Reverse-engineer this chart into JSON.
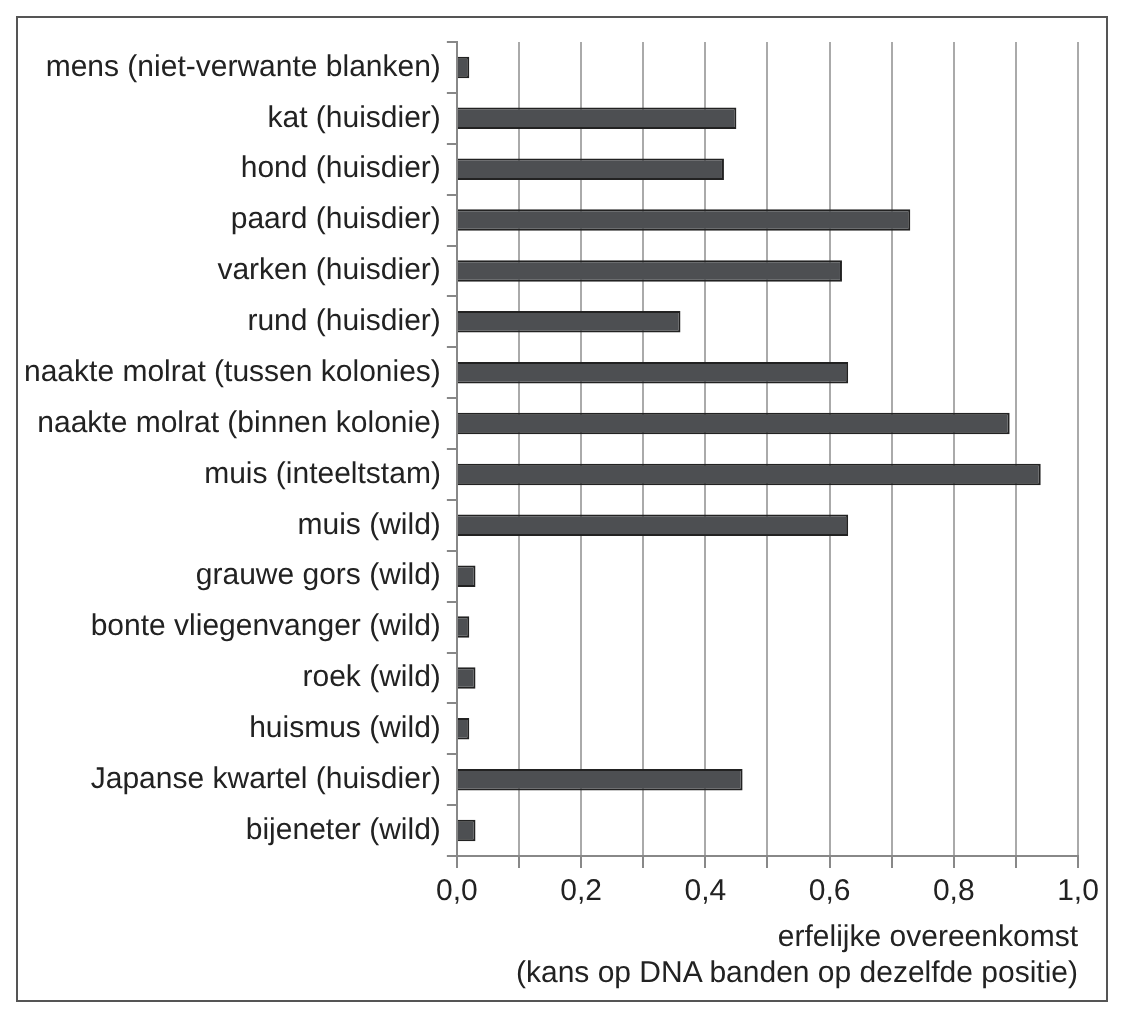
{
  "chart_data": {
    "type": "bar",
    "orientation": "horizontal",
    "categories": [
      "mens (niet-verwante blanken)",
      "kat (huisdier)",
      "hond (huisdier)",
      "paard (huisdier)",
      "varken (huisdier)",
      "rund (huisdier)",
      "naakte molrat (tussen kolonies)",
      "naakte molrat (binnen kolonie)",
      "muis (inteeltstam)",
      "muis (wild)",
      "grauwe gors (wild)",
      "bonte vliegenvanger (wild)",
      "roek (wild)",
      "huismus (wild)",
      "Japanse kwartel (huisdier)",
      "bijeneter (wild)"
    ],
    "values": [
      0.02,
      0.45,
      0.43,
      0.73,
      0.62,
      0.36,
      0.63,
      0.89,
      0.94,
      0.63,
      0.03,
      0.02,
      0.03,
      0.02,
      0.46,
      0.03
    ],
    "color": "#4d4f52",
    "xlabel": "erfelijke overeenkomst\n(kans op DNA banden op dezelfde positie)",
    "xlim": [
      0,
      1
    ],
    "xticks": [
      {
        "value": 0,
        "label": "0,0"
      },
      {
        "value": 0.1,
        "label": null
      },
      {
        "value": 0.2,
        "label": "0,2"
      },
      {
        "value": 0.3,
        "label": null
      },
      {
        "value": 0.4,
        "label": "0,4"
      },
      {
        "value": 0.5,
        "label": null
      },
      {
        "value": 0.6,
        "label": "0,6"
      },
      {
        "value": 0.7,
        "label": null
      },
      {
        "value": 0.8,
        "label": "0,8"
      },
      {
        "value": 0.9,
        "label": null
      },
      {
        "value": 1,
        "label": "1,0"
      }
    ],
    "grid": "x",
    "legend": false
  }
}
